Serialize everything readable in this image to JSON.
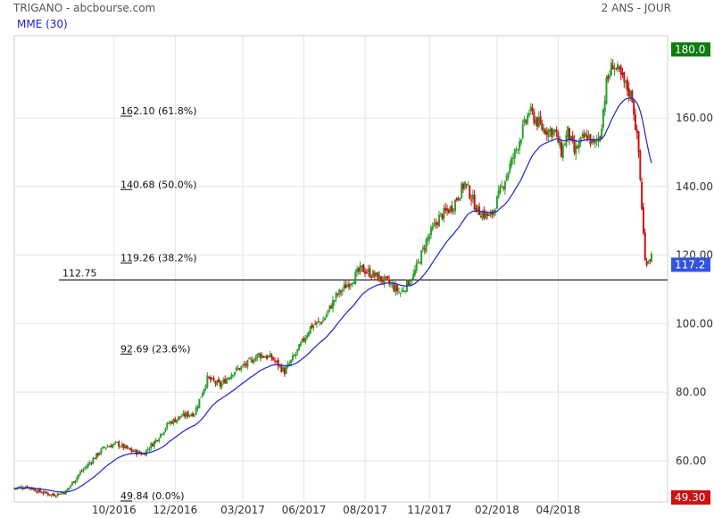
{
  "header": {
    "title": "TRIGANO - abcbourse.com",
    "period": "2 ANS - JOUR",
    "indicator": "MME (30)"
  },
  "colors": {
    "up": "#2ca02c",
    "down": "#cc1111",
    "ema": "#1f1fd6",
    "grid": "#e4e4e4",
    "badge_high": "#117a11",
    "badge_last": "#3355dd",
    "badge_low": "#cc1111"
  },
  "chart_data": {
    "type": "candlestick",
    "ylim": [
      48,
      184
    ],
    "y_ticks": [
      60,
      80,
      100,
      120,
      140,
      160
    ],
    "y_tick_labels": [
      "60.00",
      "80.00",
      "100.00",
      "120.00",
      "140.00",
      "160.00"
    ],
    "x_ticks": [
      "10/2016",
      "12/2016",
      "03/2017",
      "06/2017",
      "08/2017",
      "11/2017",
      "02/2018",
      "04/2018"
    ],
    "x_tick_positions": [
      3.1,
      5,
      7.1,
      9,
      10.9,
      12.9,
      15,
      16.9
    ],
    "fibonacci": [
      {
        "value": 162.1,
        "label": "162.10",
        "pct": "(61.8%)"
      },
      {
        "value": 140.68,
        "label": "140.68",
        "pct": "(50.0%)"
      },
      {
        "value": 119.26,
        "label": "119.26",
        "pct": "(38.2%)"
      },
      {
        "value": 92.69,
        "label": "92.69",
        "pct": "(23.6%)"
      },
      {
        "value": 49.84,
        "label": "49.84",
        "pct": "(0.0%)"
      }
    ],
    "horizontal_line": {
      "value": 112.75,
      "label": "112.75"
    },
    "badges": {
      "high": "180.0",
      "last": "117.2",
      "low": "49.30"
    },
    "badge_values": {
      "high": 180.0,
      "last": 117.2,
      "low": 49.3
    },
    "close_anchors": {
      "x_months": [
        0,
        0.4,
        0.8,
        1.2,
        1.6,
        2.0,
        2.4,
        2.8,
        3.2,
        3.6,
        4.0,
        4.4,
        4.8,
        5.2,
        5.6,
        6.0,
        6.4,
        6.8,
        7.2,
        7.6,
        8.0,
        8.4,
        8.8,
        9.2,
        9.6,
        10.0,
        10.4,
        10.8,
        11.2,
        11.6,
        12.0,
        12.4,
        12.8,
        13.2,
        13.6,
        14.0,
        14.4,
        14.8,
        15.2,
        15.6,
        16.0,
        16.4,
        16.8,
        17.0,
        17.2,
        17.4,
        17.6,
        17.8,
        18.0,
        18.2,
        18.4,
        18.6,
        19.2,
        19.4,
        19.6,
        19.8
      ],
      "close": [
        52,
        52.5,
        51,
        50,
        51,
        56,
        60,
        64,
        65,
        63,
        62,
        66,
        71,
        73,
        74,
        84,
        82,
        86,
        88,
        91,
        90,
        86,
        92,
        99,
        101,
        108,
        112,
        116,
        114,
        112,
        109,
        114,
        124,
        131,
        134,
        141,
        133,
        131,
        141,
        151,
        162,
        157,
        156,
        150,
        156,
        150,
        153,
        155,
        152,
        155,
        170,
        176,
        166,
        150,
        118,
        120
      ]
    },
    "ema_period": 30
  }
}
